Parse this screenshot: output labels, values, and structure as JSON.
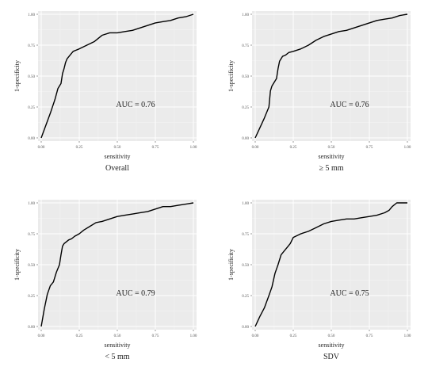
{
  "chart_data": [
    {
      "type": "line",
      "panel_caption": "Overall",
      "xlabel": "sensitivity",
      "ylabel": "1-specificity",
      "xlim": [
        0,
        1
      ],
      "ylim": [
        0,
        1
      ],
      "x_ticks": [
        "0.00",
        "0.25",
        "0.50",
        "0.75",
        "1.00"
      ],
      "y_ticks": [
        "0.00",
        "0.25",
        "0.50",
        "0.75",
        "1.00"
      ],
      "grid": true,
      "annotation": "AUC = 0.76",
      "background": "#ebebeb",
      "line_color": "#000000",
      "x": [
        0.0,
        0.03,
        0.06,
        0.09,
        0.11,
        0.12,
        0.13,
        0.14,
        0.15,
        0.16,
        0.17,
        0.19,
        0.21,
        0.23,
        0.25,
        0.3,
        0.35,
        0.4,
        0.45,
        0.5,
        0.55,
        0.6,
        0.65,
        0.7,
        0.75,
        0.8,
        0.85,
        0.9,
        0.95,
        1.0
      ],
      "y": [
        0.0,
        0.1,
        0.2,
        0.31,
        0.4,
        0.42,
        0.44,
        0.52,
        0.56,
        0.61,
        0.64,
        0.67,
        0.7,
        0.71,
        0.72,
        0.75,
        0.78,
        0.83,
        0.85,
        0.85,
        0.86,
        0.87,
        0.89,
        0.91,
        0.93,
        0.94,
        0.95,
        0.97,
        0.98,
        1.0
      ]
    },
    {
      "type": "line",
      "panel_caption": "≥ 5 mm",
      "xlabel": "sensitivity",
      "ylabel": "1-specificity",
      "xlim": [
        0,
        1
      ],
      "ylim": [
        0,
        1
      ],
      "x_ticks": [
        "0.00",
        "0.25",
        "0.50",
        "0.75",
        "1.00"
      ],
      "y_ticks": [
        "0.00",
        "0.25",
        "0.50",
        "0.75",
        "1.00"
      ],
      "grid": true,
      "annotation": "AUC = 0.76",
      "background": "#ebebeb",
      "line_color": "#000000",
      "x": [
        0.0,
        0.03,
        0.06,
        0.09,
        0.1,
        0.11,
        0.12,
        0.14,
        0.15,
        0.16,
        0.18,
        0.2,
        0.22,
        0.25,
        0.3,
        0.35,
        0.4,
        0.45,
        0.5,
        0.55,
        0.6,
        0.65,
        0.7,
        0.75,
        0.8,
        0.85,
        0.9,
        0.95,
        1.0
      ],
      "y": [
        0.0,
        0.08,
        0.16,
        0.25,
        0.38,
        0.42,
        0.44,
        0.48,
        0.56,
        0.62,
        0.66,
        0.67,
        0.69,
        0.7,
        0.72,
        0.75,
        0.79,
        0.82,
        0.84,
        0.86,
        0.87,
        0.89,
        0.91,
        0.93,
        0.95,
        0.96,
        0.97,
        0.99,
        1.0
      ]
    },
    {
      "type": "line",
      "panel_caption": "< 5 mm",
      "xlabel": "sensitivity",
      "ylabel": "1-specificity",
      "xlim": [
        0,
        1
      ],
      "ylim": [
        0,
        1
      ],
      "x_ticks": [
        "0.00",
        "0.25",
        "0.50",
        "0.75",
        "1.00"
      ],
      "y_ticks": [
        "0.00",
        "0.25",
        "0.50",
        "0.75",
        "1.00"
      ],
      "grid": true,
      "annotation": "AUC = 0.79",
      "background": "#ebebeb",
      "line_color": "#000000",
      "x": [
        0.0,
        0.02,
        0.04,
        0.06,
        0.08,
        0.1,
        0.12,
        0.13,
        0.14,
        0.15,
        0.16,
        0.18,
        0.2,
        0.22,
        0.25,
        0.28,
        0.32,
        0.36,
        0.4,
        0.45,
        0.5,
        0.55,
        0.6,
        0.65,
        0.7,
        0.75,
        0.8,
        0.85,
        0.9,
        0.95,
        1.0
      ],
      "y": [
        0.0,
        0.14,
        0.26,
        0.33,
        0.36,
        0.44,
        0.5,
        0.58,
        0.65,
        0.67,
        0.68,
        0.7,
        0.71,
        0.73,
        0.75,
        0.78,
        0.81,
        0.84,
        0.85,
        0.87,
        0.89,
        0.9,
        0.91,
        0.92,
        0.93,
        0.95,
        0.97,
        0.97,
        0.98,
        0.99,
        1.0
      ]
    },
    {
      "type": "line",
      "panel_caption": "SDV",
      "xlabel": "sensitivity",
      "ylabel": "1-specificity",
      "xlim": [
        0,
        1
      ],
      "ylim": [
        0,
        1
      ],
      "x_ticks": [
        "0.00",
        "0.25",
        "0.50",
        "0.75",
        "1.00"
      ],
      "y_ticks": [
        "0.00",
        "0.25",
        "0.50",
        "0.75",
        "1.00"
      ],
      "grid": true,
      "annotation": "AUC = 0.75",
      "background": "#ebebeb",
      "line_color": "#000000",
      "x": [
        0.0,
        0.03,
        0.06,
        0.09,
        0.11,
        0.13,
        0.15,
        0.17,
        0.19,
        0.21,
        0.23,
        0.25,
        0.3,
        0.35,
        0.4,
        0.45,
        0.5,
        0.55,
        0.6,
        0.65,
        0.7,
        0.75,
        0.8,
        0.85,
        0.88,
        0.9,
        0.93,
        0.95,
        1.0
      ],
      "y": [
        0.0,
        0.08,
        0.15,
        0.25,
        0.32,
        0.43,
        0.5,
        0.58,
        0.61,
        0.64,
        0.67,
        0.72,
        0.75,
        0.77,
        0.8,
        0.83,
        0.85,
        0.86,
        0.87,
        0.87,
        0.88,
        0.89,
        0.9,
        0.92,
        0.94,
        0.97,
        1.0,
        1.0,
        1.0
      ]
    }
  ]
}
